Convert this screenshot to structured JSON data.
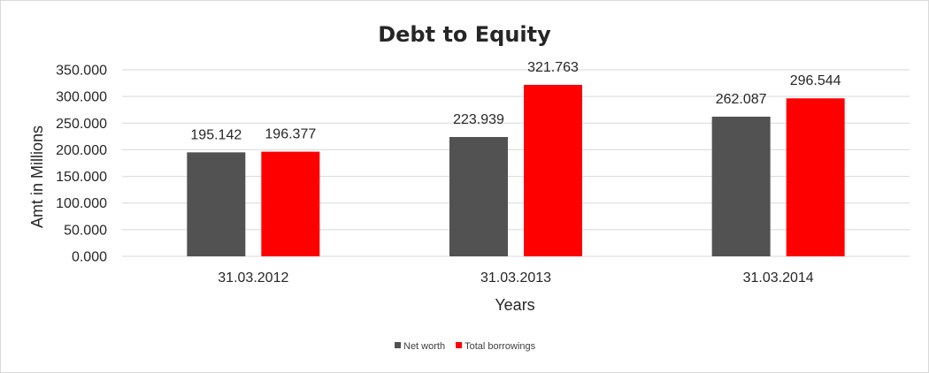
{
  "chart_data": {
    "type": "bar",
    "title": "Debt to Equity",
    "xlabel": "Years",
    "ylabel": "Amt in Millions",
    "categories": [
      "31.03.2012",
      "31.03.2013",
      "31.03.2014"
    ],
    "series": [
      {
        "name": "Net worth",
        "values": [
          195.142,
          223.939,
          262.087
        ],
        "color": "#525252"
      },
      {
        "name": "Total borrowings",
        "values": [
          196.377,
          321.763,
          296.544
        ],
        "color": "#ff0000"
      }
    ],
    "data_labels": [
      [
        "195.142",
        "223.939",
        "262.087"
      ],
      [
        "196.377",
        "321.763",
        "296.544"
      ]
    ],
    "ylim": [
      0,
      350
    ],
    "yticks": [
      0,
      50,
      100,
      150,
      200,
      250,
      300,
      350
    ],
    "ytick_labels": [
      "0.000",
      "50.000",
      "100.000",
      "150.000",
      "200.000",
      "250.000",
      "300.000",
      "350.000"
    ],
    "grid": true,
    "legend_position": "bottom"
  }
}
